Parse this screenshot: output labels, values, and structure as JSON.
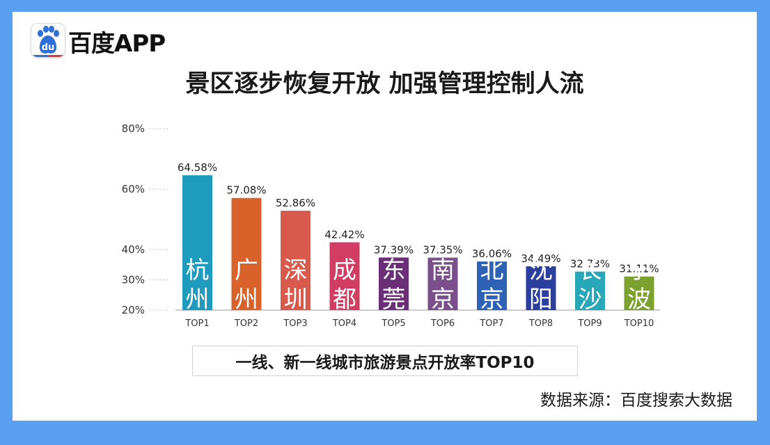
{
  "brand": {
    "name": "百度APP",
    "logo_text": "du"
  },
  "title": "景区逐步恢复开放 加强管理控制人流",
  "caption": "一线、新一线城市旅游景点开放率TOP10",
  "source": "数据来源：百度搜索大数据",
  "chart_data": {
    "type": "bar",
    "title": "",
    "xlabel": "",
    "ylabel": "",
    "categories": [
      "TOP1",
      "TOP2",
      "TOP3",
      "TOP4",
      "TOP5",
      "TOP6",
      "TOP7",
      "TOP8",
      "TOP9",
      "TOP10"
    ],
    "cities": [
      "杭州",
      "广州",
      "深圳",
      "成都",
      "东莞",
      "南京",
      "北京",
      "沈阳",
      "长沙",
      "宁波"
    ],
    "values": [
      64.58,
      57.08,
      52.86,
      42.42,
      37.39,
      37.35,
      36.06,
      34.49,
      32.73,
      31.11
    ],
    "value_labels": [
      "64.58%",
      "57.08%",
      "52.86%",
      "42.42%",
      "37.39%",
      "37.35%",
      "36.06%",
      "34.49%",
      "32.73%",
      "31.11%"
    ],
    "colors": [
      "#1f9bbd",
      "#d9622b",
      "#d85a4d",
      "#d23d63",
      "#6b2f78",
      "#7a4f8c",
      "#2d62b5",
      "#2c3f9e",
      "#27a7b8",
      "#7da12f"
    ],
    "y_ticks": [
      20,
      30,
      40,
      60,
      80
    ],
    "y_tick_labels": [
      "20%",
      "30%",
      "40%",
      "60%",
      "80%"
    ],
    "ylim": [
      20,
      80
    ],
    "grid": true,
    "legend": "none"
  }
}
